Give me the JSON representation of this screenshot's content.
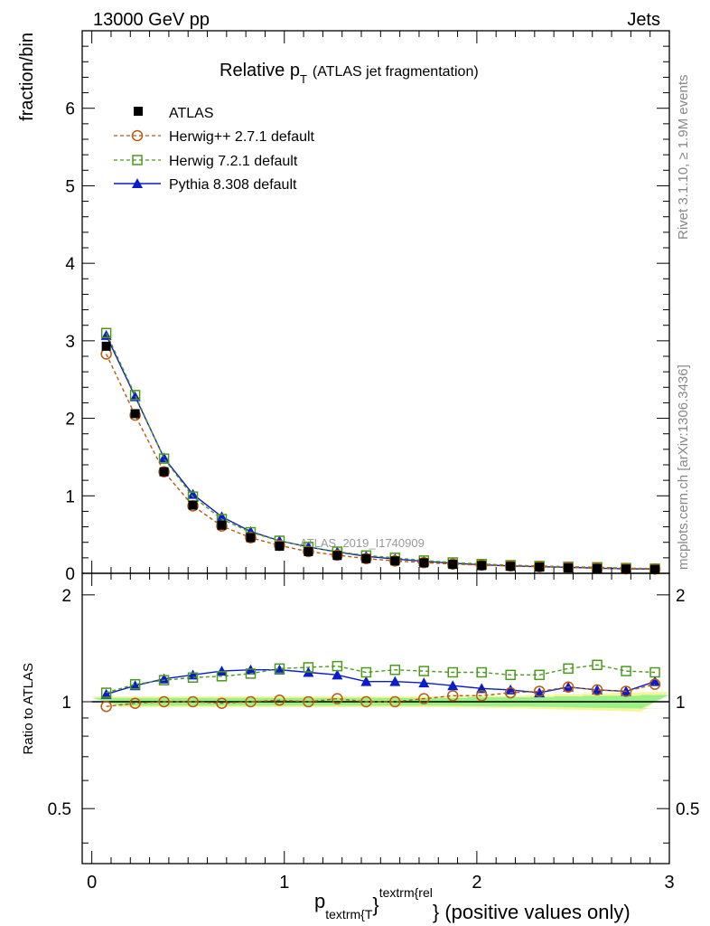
{
  "header": {
    "left": "13000 GeV pp",
    "right": "Jets"
  },
  "side_labels": {
    "rivet": "Rivet 3.1.10, ≥ 1.9M events",
    "mcplots": "mcplots.cern.ch [arXiv:1306.3436]"
  },
  "watermark": "ATLAS_2019_I1740909",
  "colors": {
    "atlas": "#000000",
    "herwigpp": "#b85a10",
    "herwig7": "#4c9a1a",
    "pythia": "#0a1ccc",
    "band_inner": "#9cf08a",
    "band_outer": "#f6f59a"
  },
  "chart_data": [
    {
      "type": "line",
      "title": {
        "main": "Relative p",
        "sub": "T",
        "paren": "(ATLAS jet fragmentation)"
      },
      "ylabel": "fraction/bin",
      "xlim": [
        -0.05,
        3.0
      ],
      "ylim": [
        0,
        7.0
      ],
      "yticks": [
        0,
        1,
        2,
        3,
        4,
        5,
        6
      ],
      "yticklabels": [
        "0",
        "1",
        "2",
        "3",
        "4",
        "5",
        "6"
      ],
      "legend": {
        "placement": "top-left",
        "entries": [
          "ATLAS",
          "Herwig++ 2.7.1 default",
          "Herwig 7.2.1 default",
          "Pythia 8.308 default"
        ]
      },
      "x": [
        0.075,
        0.225,
        0.375,
        0.525,
        0.675,
        0.825,
        0.975,
        1.125,
        1.275,
        1.425,
        1.575,
        1.725,
        1.875,
        2.025,
        2.175,
        2.325,
        2.475,
        2.625,
        2.775,
        2.925
      ],
      "series": [
        {
          "name": "ATLAS",
          "values": [
            2.93,
            2.06,
            1.31,
            0.88,
            0.62,
            0.46,
            0.35,
            0.28,
            0.23,
            0.19,
            0.16,
            0.135,
            0.115,
            0.1,
            0.09,
            0.08,
            0.07,
            0.062,
            0.055,
            0.05
          ]
        },
        {
          "name": "Herwig++ 2.7.1 default",
          "values": [
            2.83,
            2.04,
            1.31,
            0.87,
            0.61,
            0.46,
            0.36,
            0.28,
            0.235,
            0.19,
            0.16,
            0.138,
            0.12,
            0.105,
            0.095,
            0.085,
            0.078,
            0.066,
            0.058,
            0.055
          ]
        },
        {
          "name": "Herwig 7.2.1 default",
          "values": [
            3.1,
            2.3,
            1.48,
            0.99,
            0.7,
            0.53,
            0.42,
            0.34,
            0.28,
            0.23,
            0.2,
            0.165,
            0.14,
            0.12,
            0.105,
            0.095,
            0.085,
            0.078,
            0.068,
            0.06
          ]
        },
        {
          "name": "Pythia 8.308 default",
          "values": [
            3.07,
            2.28,
            1.49,
            1.02,
            0.73,
            0.54,
            0.42,
            0.34,
            0.275,
            0.22,
            0.185,
            0.155,
            0.13,
            0.11,
            0.095,
            0.085,
            0.078,
            0.066,
            0.058,
            0.057
          ]
        }
      ]
    },
    {
      "type": "line",
      "ylabel": "Ratio to ATLAS",
      "xlabel": {
        "main": "p",
        "sub": "textrm{T",
        "sup": "textrm{rel",
        "brace": "}",
        "tail": "} (positive values only)"
      },
      "xlim": [
        -0.05,
        3.0
      ],
      "ylim": [
        0.35,
        2.3
      ],
      "yticks": [
        0.5,
        1,
        2
      ],
      "yticklabels": [
        "0.5",
        "1",
        "2"
      ],
      "xticks": [
        0,
        1,
        2,
        3
      ],
      "xticklabels": [
        "0",
        "1",
        "2",
        "3"
      ],
      "x": [
        0.075,
        0.225,
        0.375,
        0.525,
        0.675,
        0.825,
        0.975,
        1.125,
        1.275,
        1.425,
        1.575,
        1.725,
        1.875,
        2.025,
        2.175,
        2.325,
        2.475,
        2.625,
        2.775,
        2.925
      ],
      "band_inner": [
        0.025,
        0.025,
        0.025,
        0.025,
        0.025,
        0.025,
        0.025,
        0.025,
        0.025,
        0.025,
        0.025,
        0.025,
        0.025,
        0.03,
        0.03,
        0.03,
        0.035,
        0.04,
        0.04,
        0.045
      ],
      "band_outer": [
        0.035,
        0.035,
        0.035,
        0.035,
        0.035,
        0.035,
        0.035,
        0.035,
        0.035,
        0.035,
        0.035,
        0.035,
        0.035,
        0.04,
        0.04,
        0.045,
        0.05,
        0.055,
        0.06,
        0.065
      ],
      "series": [
        {
          "name": "Herwig++ 2.7.1 default",
          "values": [
            0.97,
            0.99,
            1.0,
            1.0,
            0.99,
            1.0,
            1.01,
            1.0,
            1.02,
            1.0,
            1.0,
            1.02,
            1.04,
            1.04,
            1.06,
            1.07,
            1.1,
            1.08,
            1.07,
            1.12
          ]
        },
        {
          "name": "Herwig 7.2.1 default",
          "values": [
            1.06,
            1.12,
            1.15,
            1.17,
            1.18,
            1.2,
            1.24,
            1.25,
            1.26,
            1.21,
            1.23,
            1.22,
            1.21,
            1.21,
            1.19,
            1.19,
            1.24,
            1.27,
            1.22,
            1.21
          ]
        },
        {
          "name": "Pythia 8.308 default",
          "values": [
            1.05,
            1.11,
            1.16,
            1.19,
            1.22,
            1.23,
            1.23,
            1.21,
            1.19,
            1.14,
            1.14,
            1.13,
            1.11,
            1.09,
            1.08,
            1.06,
            1.1,
            1.08,
            1.07,
            1.14
          ]
        }
      ]
    }
  ]
}
